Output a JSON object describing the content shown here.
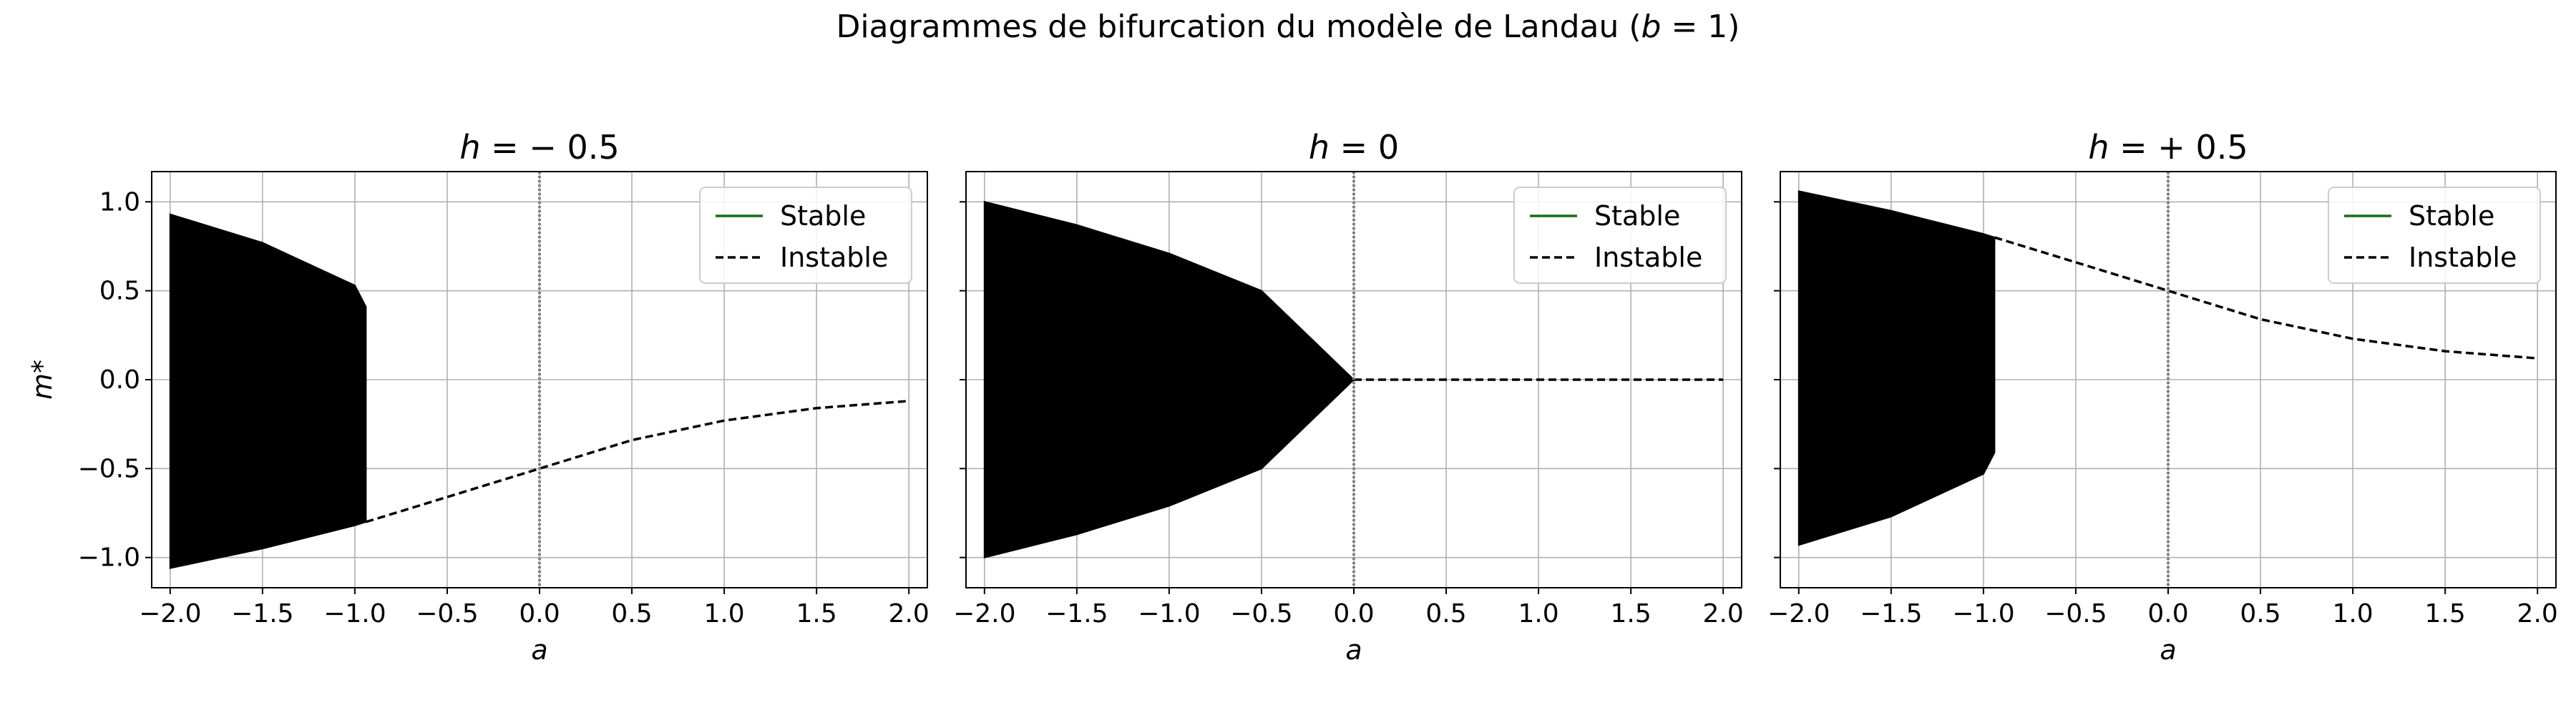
{
  "figure": {
    "title": "Diagrammes de bifurcation du modèle de Landau (b = 1)"
  },
  "chart_data": [
    {
      "type": "line",
      "title": "h = − 0.5",
      "xlabel": "a",
      "ylabel": "m*",
      "xlim": [
        -2.1,
        2.1
      ],
      "ylim": [
        -1.17,
        1.17
      ],
      "xticks": [
        "−2.0",
        "−1.5",
        "−1.0",
        "−0.5",
        "0.0",
        "0.5",
        "1.0",
        "1.5",
        "2.0"
      ],
      "yticks": [
        "1.0",
        "0.5",
        "0.0",
        "−0.5",
        "−1.0"
      ],
      "grid": true,
      "legend": {
        "position": "top-right",
        "entries": [
          "Stable",
          "Instable"
        ]
      },
      "h": -0.5,
      "vline_x": 0.0,
      "colors": {
        "stable": "#1a6b1a",
        "instable": "#000000",
        "fill": "#000000",
        "vline": "#7f7f7f"
      },
      "fill_region": {
        "x": [
          -2.0,
          -1.5,
          -1.0,
          -0.94
        ],
        "upper": [
          0.93,
          0.77,
          0.53,
          0.41
        ],
        "lower": [
          -1.06,
          -0.95,
          -0.82,
          -0.8
        ]
      },
      "series": [
        {
          "name": "Instable",
          "style": "dashed",
          "x": [
            -0.94,
            -0.5,
            0.0,
            0.5,
            1.0,
            1.5,
            2.0
          ],
          "y": [
            -0.8,
            -0.66,
            -0.5,
            -0.34,
            -0.23,
            -0.16,
            -0.12
          ]
        }
      ]
    },
    {
      "type": "line",
      "title": "h = 0",
      "xlabel": "a",
      "ylabel": "",
      "xlim": [
        -2.1,
        2.1
      ],
      "ylim": [
        -1.17,
        1.17
      ],
      "xticks": [
        "−2.0",
        "−1.5",
        "−1.0",
        "−0.5",
        "0.0",
        "0.5",
        "1.0",
        "1.5",
        "2.0"
      ],
      "yticks": [],
      "grid": true,
      "legend": {
        "position": "top-right",
        "entries": [
          "Stable",
          "Instable"
        ]
      },
      "h": 0,
      "vline_x": 0.0,
      "colors": {
        "stable": "#1a6b1a",
        "instable": "#000000",
        "fill": "#000000",
        "vline": "#7f7f7f"
      },
      "fill_region": {
        "x": [
          -2.0,
          -1.5,
          -1.0,
          -0.5,
          0.0
        ],
        "upper": [
          1.0,
          0.87,
          0.71,
          0.5,
          0.0
        ],
        "lower": [
          -1.0,
          -0.87,
          -0.71,
          -0.5,
          0.0
        ]
      },
      "series": [
        {
          "name": "Instable",
          "style": "dashed",
          "x": [
            0.0,
            0.5,
            1.0,
            1.5,
            2.0
          ],
          "y": [
            0.0,
            0.0,
            0.0,
            0.0,
            0.0
          ]
        }
      ]
    },
    {
      "type": "line",
      "title": "h = + 0.5",
      "xlabel": "a",
      "ylabel": "",
      "xlim": [
        -2.1,
        2.1
      ],
      "ylim": [
        -1.17,
        1.17
      ],
      "xticks": [
        "−2.0",
        "−1.5",
        "−1.0",
        "−0.5",
        "0.0",
        "0.5",
        "1.0",
        "1.5",
        "2.0"
      ],
      "yticks": [],
      "grid": true,
      "legend": {
        "position": "top-right",
        "entries": [
          "Stable",
          "Instable"
        ]
      },
      "h": 0.5,
      "vline_x": 0.0,
      "colors": {
        "stable": "#1a6b1a",
        "instable": "#000000",
        "fill": "#000000",
        "vline": "#7f7f7f"
      },
      "fill_region": {
        "x": [
          -2.0,
          -1.5,
          -1.0,
          -0.94
        ],
        "upper": [
          1.06,
          0.95,
          0.82,
          0.8
        ],
        "lower": [
          -0.93,
          -0.77,
          -0.53,
          -0.41
        ]
      },
      "series": [
        {
          "name": "Instable",
          "style": "dashed",
          "x": [
            -0.94,
            -0.5,
            0.0,
            0.5,
            1.0,
            1.5,
            2.0
          ],
          "y": [
            0.8,
            0.66,
            0.5,
            0.34,
            0.23,
            0.16,
            0.12
          ]
        }
      ]
    }
  ]
}
